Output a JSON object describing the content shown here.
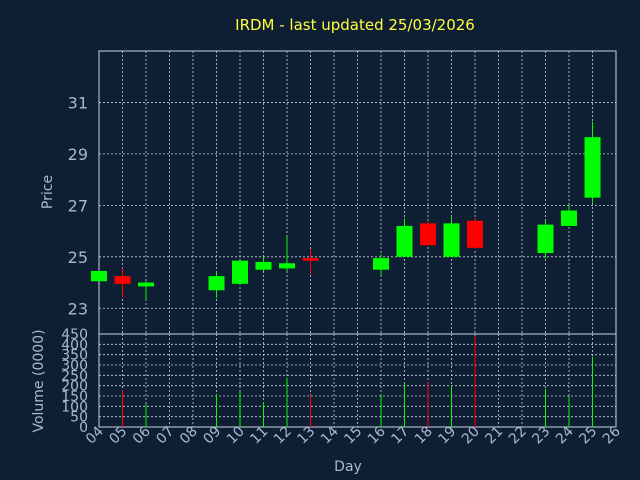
{
  "chart_data": {
    "type": "candlestick",
    "title": "IRDM - last updated 25/03/2026",
    "xlabel": "Day",
    "ylabel": "Price",
    "volume_label": "Volume (0000)",
    "x_ticks": [
      "04",
      "05",
      "06",
      "07",
      "08",
      "09",
      "10",
      "11",
      "12",
      "13",
      "14",
      "15",
      "16",
      "17",
      "18",
      "19",
      "20",
      "21",
      "22",
      "23",
      "24",
      "25",
      "26"
    ],
    "price_ticks": [
      23,
      25,
      27,
      29,
      31
    ],
    "price_ylim": [
      22.0,
      33.0
    ],
    "volume_ticks": [
      0,
      50,
      100,
      150,
      200,
      250,
      300,
      350,
      400,
      450
    ],
    "volume_ylim": [
      0,
      450
    ],
    "grid": true,
    "colors": {
      "up": "#00ff00",
      "down": "#ff0000",
      "background": "#0f1f33",
      "title": "#ffff40",
      "text": "#a8b8d0",
      "grid": "#c8d0dc"
    },
    "candles": [
      {
        "x": 4,
        "open": 24.05,
        "close": 24.45,
        "high": 24.45,
        "low": 24.05,
        "volume": 0
      },
      {
        "x": 5,
        "open": 24.25,
        "close": 23.95,
        "high": 24.55,
        "low": 23.4,
        "volume": 180
      },
      {
        "x": 6,
        "open": 23.85,
        "close": 24.0,
        "high": 24.05,
        "low": 23.35,
        "volume": 110
      },
      {
        "x": 9,
        "open": 23.7,
        "close": 24.25,
        "high": 24.45,
        "low": 23.4,
        "volume": 160
      },
      {
        "x": 10,
        "open": 23.95,
        "close": 24.85,
        "high": 24.85,
        "low": 23.9,
        "volume": 175
      },
      {
        "x": 11,
        "open": 24.5,
        "close": 24.8,
        "high": 25.0,
        "low": 24.45,
        "volume": 120
      },
      {
        "x": 12,
        "open": 24.55,
        "close": 24.75,
        "high": 25.8,
        "low": 24.45,
        "volume": 240
      },
      {
        "x": 13,
        "open": 24.95,
        "close": 24.85,
        "high": 25.3,
        "low": 24.3,
        "volume": 155
      },
      {
        "x": 16,
        "open": 24.5,
        "close": 24.95,
        "high": 25.1,
        "low": 24.25,
        "volume": 160
      },
      {
        "x": 17,
        "open": 25.0,
        "close": 26.2,
        "high": 26.5,
        "low": 25.0,
        "volume": 215
      },
      {
        "x": 18,
        "open": 26.3,
        "close": 25.45,
        "high": 26.4,
        "low": 25.45,
        "volume": 215
      },
      {
        "x": 19,
        "open": 25.0,
        "close": 26.3,
        "high": 26.6,
        "low": 25.0,
        "volume": 200
      },
      {
        "x": 20,
        "open": 26.4,
        "close": 25.35,
        "high": 26.5,
        "low": 25.3,
        "volume": 440
      },
      {
        "x": 23,
        "open": 25.15,
        "close": 26.25,
        "high": 26.4,
        "low": 24.95,
        "volume": 185
      },
      {
        "x": 24,
        "open": 26.2,
        "close": 26.8,
        "high": 27.0,
        "low": 26.2,
        "volume": 155
      },
      {
        "x": 25,
        "open": 27.3,
        "close": 29.65,
        "high": 30.25,
        "low": 27.1,
        "volume": 340
      }
    ]
  }
}
